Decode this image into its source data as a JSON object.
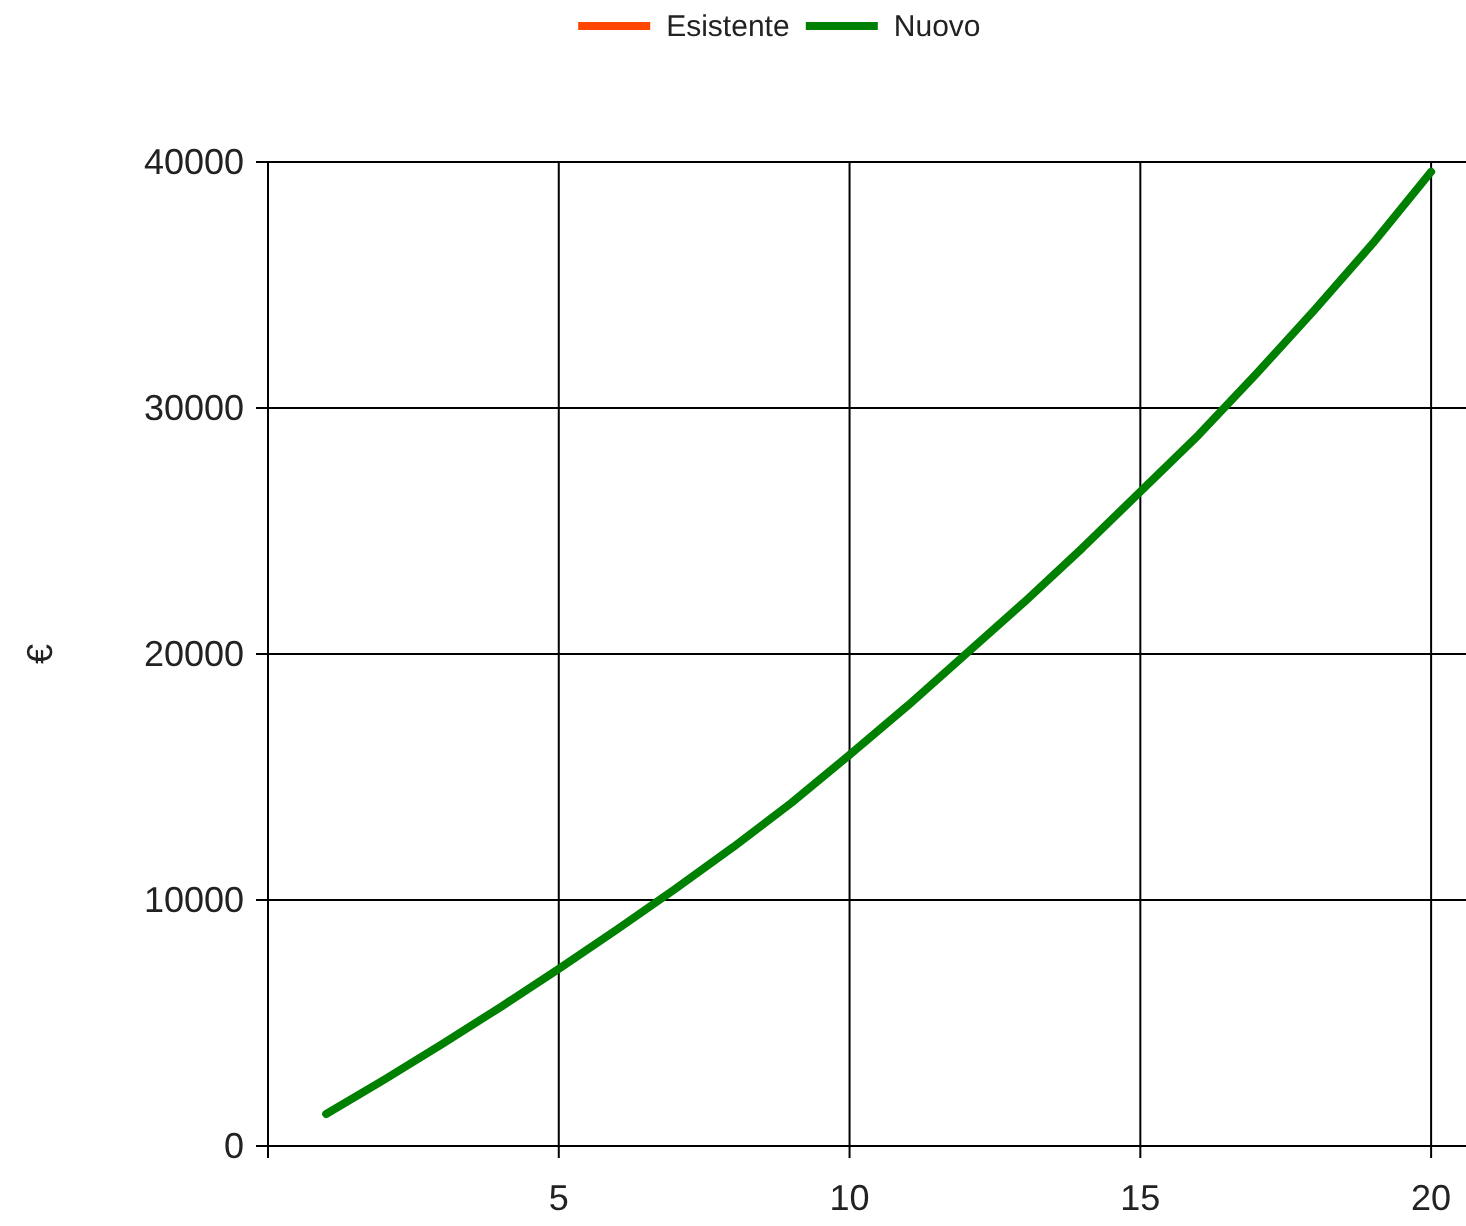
{
  "chart_data": {
    "type": "line",
    "ylabel": "€",
    "x": [
      1,
      2,
      3,
      4,
      5,
      6,
      7,
      8,
      9,
      10,
      11,
      12,
      13,
      14,
      15,
      16,
      17,
      18,
      19,
      20
    ],
    "series": [
      {
        "name": "Esistente",
        "color": "#ff4500",
        "values": [
          null,
          null,
          null,
          null,
          null,
          null,
          null,
          null,
          null,
          null,
          null,
          null,
          null,
          null,
          null,
          null,
          null,
          null,
          null,
          null
        ]
      },
      {
        "name": "Nuovo",
        "color": "#008000",
        "values": [
          1300,
          2700,
          4150,
          5650,
          7200,
          8800,
          10450,
          12150,
          13950,
          15900,
          17900,
          20000,
          22100,
          24300,
          26600,
          28900,
          31400,
          34000,
          36700,
          39600
        ]
      }
    ],
    "xlim": [
      0,
      20.6
    ],
    "xticks": [
      {
        "value": 0,
        "label": null
      },
      5,
      10,
      15,
      20
    ],
    "ylim": [
      0,
      40000
    ],
    "yticks": [
      0,
      10000,
      20000,
      30000,
      40000
    ],
    "grid": true,
    "legend": "top",
    "marker": "none",
    "line_style": "solid"
  }
}
